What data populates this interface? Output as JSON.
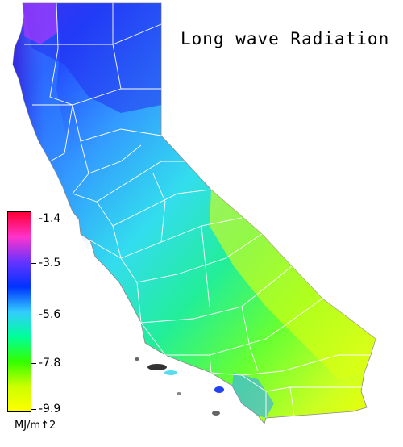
{
  "title": "Long wave Radiation",
  "legend": {
    "unit": "MJ/m↑2",
    "ticks": [
      "-1.4",
      "-3.5",
      "-5.6",
      "-7.8",
      "-9.9"
    ],
    "range": [
      -9.9,
      -1.4
    ],
    "colors": [
      "#ff0033",
      "#ff33cc",
      "#6633ff",
      "#0033ff",
      "#33ccff",
      "#00ff99",
      "#33ff00",
      "#ccff00",
      "#ffff00"
    ]
  },
  "region": "California"
}
